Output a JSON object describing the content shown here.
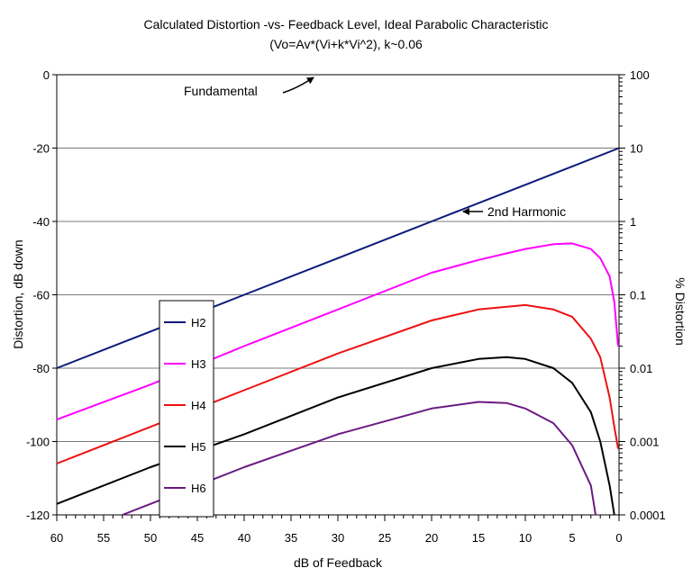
{
  "chart_data": {
    "type": "line",
    "title": "Calculated Distortion -vs- Feedback Level, Ideal Parabolic Characteristic",
    "subtitle": "(Vo=Av*(Vi+k*Vi^2), k~0.06",
    "xlabel": "dB of Feedback",
    "ylabel": "Distortion, dB down",
    "y2label": "% Distortion",
    "xlim": [
      60,
      0
    ],
    "ylim": [
      -120,
      0
    ],
    "x_reversed": true,
    "x_ticks": [
      "60",
      "55",
      "50",
      "45",
      "40",
      "35",
      "30",
      "25",
      "20",
      "15",
      "10",
      "5",
      "0"
    ],
    "y_ticks": [
      "-120",
      "-100",
      "-80",
      "-60",
      "-40",
      "-20",
      "0"
    ],
    "y2_ticks": [
      "0.0001",
      "0.001",
      "0.01",
      "0.1",
      "1",
      "10",
      "100"
    ],
    "y2_scale": "log",
    "grid": "horizontal",
    "legend_position": "bottom-left",
    "colors": {
      "H2": "#0a1a7a",
      "H3": "#ff00ff",
      "H4": "#ee1111",
      "H5": "#000000",
      "H6": "#6a1a82"
    },
    "series": [
      {
        "name": "H2",
        "x": [
          60,
          50,
          40,
          30,
          20,
          10,
          5,
          0
        ],
        "values": [
          -80,
          -70,
          -60,
          -50,
          -40,
          -30,
          -25,
          -20
        ]
      },
      {
        "name": "H3",
        "x": [
          60,
          50,
          40,
          30,
          20,
          15,
          10,
          7,
          5,
          3,
          2,
          1,
          0.5,
          0.1
        ],
        "values": [
          -94,
          -84.5,
          -74,
          -64,
          -54,
          -50.5,
          -47.5,
          -46.2,
          -46,
          -47.5,
          -50,
          -55,
          -62,
          -74
        ]
      },
      {
        "name": "H4",
        "x": [
          60,
          50,
          40,
          30,
          20,
          15,
          10,
          7,
          5,
          3,
          2,
          1,
          0.5,
          0.1
        ],
        "values": [
          -106,
          -96,
          -86,
          -76,
          -67,
          -64,
          -62.8,
          -64,
          -66,
          -72,
          -77,
          -88,
          -96,
          -102
        ]
      },
      {
        "name": "H5",
        "x": [
          60,
          50,
          40,
          30,
          20,
          15,
          12,
          10,
          7,
          5,
          3,
          2,
          1,
          0.5
        ],
        "values": [
          -117,
          -107,
          -98,
          -88,
          -80,
          -77.5,
          -77,
          -77.5,
          -80,
          -84,
          -92,
          -100,
          -112,
          -120
        ]
      },
      {
        "name": "H6",
        "x": [
          53,
          50,
          40,
          30,
          20,
          15,
          12,
          10,
          7,
          5,
          3,
          2.5
        ],
        "values": [
          -120,
          -117,
          -107,
          -98,
          -91,
          -89.2,
          -89.5,
          -91,
          -95,
          -101,
          -112,
          -120
        ]
      }
    ],
    "annotations": [
      {
        "text": "Fundamental",
        "x": 42.5,
        "y": -4.5
      },
      {
        "text": "2nd Harmonic",
        "x": 16,
        "y": -37
      }
    ]
  }
}
